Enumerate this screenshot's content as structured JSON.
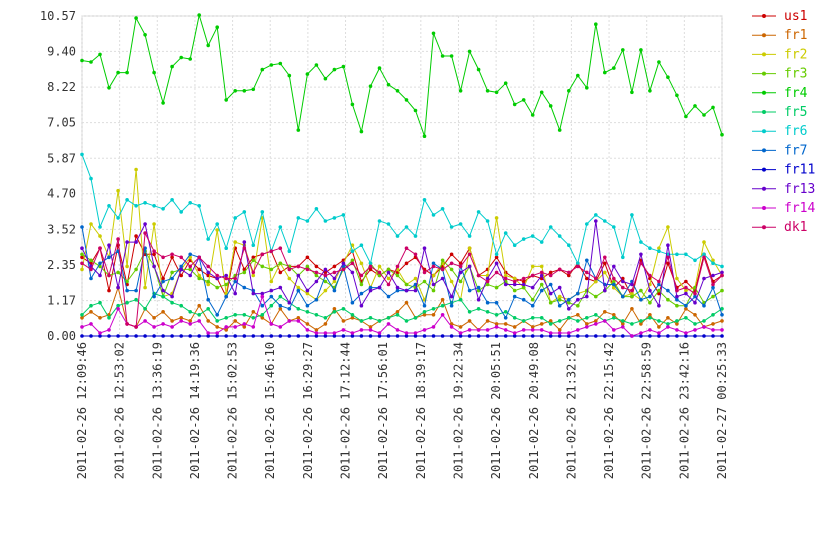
{
  "chart_data": {
    "type": "line",
    "y_ticks": [
      "0.00",
      "1.17",
      "2.35",
      "3.52",
      "4.70",
      "5.87",
      "7.05",
      "8.22",
      "9.40",
      "10.57"
    ],
    "ylim": [
      0,
      10.57
    ],
    "x_tick_labels": [
      "2011-02-26 12:09:46",
      "2011-02-26 12:53:02",
      "2011-02-26 13:36:19",
      "2011-02-26 14:19:36",
      "2011-02-26 15:02:53",
      "2011-02-26 15:46:10",
      "2011-02-26 16:29:27",
      "2011-02-26 17:12:44",
      "2011-02-26 17:56:01",
      "2011-02-26 18:39:17",
      "2011-02-26 19:22:34",
      "2011-02-26 20:05:51",
      "2011-02-26 20:49:08",
      "2011-02-26 21:32:25",
      "2011-02-26 22:15:42",
      "2011-02-26 22:58:59",
      "2011-02-26 23:42:16",
      "2011-02-27 00:25:33"
    ],
    "grid": true,
    "legend_position": "right",
    "series": [
      {
        "name": "us1",
        "color": "#cc0000",
        "values": [
          2.6,
          2.4,
          2.9,
          1.5,
          3.0,
          1.7,
          3.3,
          2.7,
          2.7,
          1.9,
          2.6,
          2.0,
          2.5,
          2.2,
          2.0,
          1.9,
          1.3,
          2.9,
          2.2,
          2.6,
          2.7,
          2.8,
          2.1,
          2.3,
          2.3,
          2.6,
          2.3,
          2.1,
          2.3,
          2.5,
          2.8,
          1.8,
          2.2,
          2.0,
          2.2,
          2.1,
          2.4,
          2.6,
          2.2,
          2.0,
          2.3,
          2.7,
          2.4,
          2.9,
          2.0,
          2.2,
          2.6,
          2.1,
          1.9,
          1.8,
          2.0,
          1.9,
          2.1,
          2.2,
          2.0,
          2.4,
          1.9,
          1.8,
          2.4,
          1.6,
          1.9,
          1.3,
          2.5,
          1.9,
          1.4,
          2.4,
          1.6,
          1.8,
          1.5,
          2.7,
          1.8,
          2.0
        ]
      },
      {
        "name": "fr1",
        "color": "#cc6600",
        "values": [
          0.6,
          0.8,
          0.6,
          0.7,
          1.6,
          0.4,
          0.3,
          0.9,
          0.6,
          0.8,
          0.5,
          0.6,
          0.5,
          1.0,
          0.5,
          0.3,
          0.2,
          0.5,
          0.3,
          0.8,
          0.6,
          0.4,
          0.9,
          0.5,
          0.6,
          0.4,
          0.2,
          0.4,
          0.9,
          0.5,
          0.6,
          0.5,
          0.3,
          0.5,
          0.6,
          0.8,
          1.1,
          0.6,
          0.7,
          0.7,
          1.2,
          0.4,
          0.3,
          0.5,
          0.2,
          0.5,
          0.4,
          0.4,
          0.3,
          0.5,
          0.3,
          0.4,
          0.5,
          0.2,
          0.6,
          0.7,
          0.4,
          0.5,
          0.8,
          0.7,
          0.4,
          0.9,
          0.4,
          0.7,
          0.3,
          0.6,
          0.4,
          0.9,
          0.7,
          0.3,
          0.4,
          0.5
        ]
      },
      {
        "name": "fr2",
        "color": "#cccc00",
        "values": [
          2.2,
          3.7,
          3.3,
          2.6,
          4.8,
          2.3,
          5.5,
          1.6,
          3.7,
          1.3,
          1.4,
          2.2,
          2.6,
          2.0,
          1.7,
          3.5,
          1.4,
          3.1,
          3.0,
          2.0,
          3.9,
          1.8,
          2.4,
          1.9,
          1.6,
          1.4,
          1.2,
          1.5,
          1.8,
          2.4,
          3.0,
          2.4,
          1.6,
          2.3,
          1.9,
          2.2,
          1.7,
          1.9,
          1.2,
          2.0,
          2.4,
          1.8,
          1.2,
          2.9,
          2.0,
          2.0,
          3.9,
          2.0,
          1.9,
          1.6,
          2.3,
          2.3,
          1.1,
          1.3,
          1.2,
          1.4,
          1.5,
          1.8,
          2.1,
          1.6,
          1.3,
          1.4,
          1.2,
          1.7,
          2.9,
          3.6,
          1.9,
          1.5,
          1.6,
          3.1,
          2.5,
          2.0
        ]
      },
      {
        "name": "fr3",
        "color": "#66cc00",
        "values": [
          2.7,
          2.5,
          2.3,
          2.0,
          2.1,
          1.8,
          2.2,
          2.8,
          2.3,
          1.3,
          2.1,
          2.2,
          2.2,
          1.9,
          1.8,
          1.6,
          1.7,
          2.0,
          2.1,
          2.5,
          2.3,
          2.2,
          2.4,
          2.3,
          2.0,
          2.3,
          2.0,
          1.8,
          1.6,
          2.2,
          2.5,
          1.7,
          2.4,
          2.0,
          2.2,
          2.0,
          1.7,
          1.6,
          1.8,
          1.5,
          2.5,
          2.2,
          1.8,
          2.3,
          1.5,
          1.7,
          1.6,
          1.8,
          1.5,
          1.6,
          1.2,
          1.7,
          1.1,
          1.2,
          1.1,
          1.0,
          1.5,
          1.3,
          1.5,
          1.8,
          1.3,
          1.3,
          1.5,
          1.1,
          1.5,
          1.2,
          1.0,
          1.0,
          1.6,
          1.1,
          1.3,
          1.5
        ]
      },
      {
        "name": "fr4",
        "color": "#00cc00",
        "values": [
          9.1,
          9.05,
          9.3,
          8.2,
          8.7,
          8.7,
          10.5,
          9.95,
          8.7,
          7.7,
          8.9,
          9.2,
          9.15,
          10.6,
          9.6,
          10.2,
          7.8,
          8.1,
          8.1,
          8.15,
          8.8,
          8.95,
          9.0,
          8.6,
          6.8,
          8.65,
          8.95,
          8.5,
          8.8,
          8.9,
          7.65,
          6.75,
          8.25,
          8.85,
          8.3,
          8.1,
          7.8,
          7.45,
          6.6,
          10.0,
          9.25,
          9.25,
          8.1,
          9.4,
          8.8,
          8.1,
          8.05,
          8.35,
          7.65,
          7.8,
          7.3,
          8.05,
          7.6,
          6.8,
          8.1,
          8.6,
          8.2,
          10.3,
          8.7,
          8.85,
          9.45,
          8.05,
          9.45,
          8.1,
          9.05,
          8.55,
          7.95,
          7.25,
          7.6,
          7.3,
          7.55,
          6.65
        ]
      },
      {
        "name": "fr5",
        "color": "#00cc66",
        "values": [
          0.7,
          1.0,
          1.1,
          0.6,
          1.0,
          1.1,
          1.2,
          0.9,
          1.4,
          1.3,
          1.1,
          1.0,
          0.8,
          0.7,
          0.9,
          0.5,
          0.6,
          0.7,
          0.7,
          0.6,
          0.7,
          1.0,
          1.3,
          1.1,
          0.9,
          0.8,
          0.7,
          0.6,
          0.8,
          0.9,
          0.7,
          0.5,
          0.6,
          0.5,
          0.6,
          0.7,
          0.5,
          0.6,
          0.8,
          0.9,
          1.0,
          1.1,
          1.2,
          0.8,
          0.9,
          0.8,
          0.7,
          0.8,
          0.6,
          0.5,
          0.6,
          0.6,
          0.4,
          0.5,
          0.6,
          0.5,
          0.6,
          0.7,
          0.5,
          0.6,
          0.5,
          0.4,
          0.5,
          0.6,
          0.5,
          0.4,
          0.5,
          0.6,
          0.4,
          0.5,
          0.7,
          0.9
        ]
      },
      {
        "name": "fr6",
        "color": "#00cccc",
        "values": [
          6.0,
          5.2,
          3.6,
          4.3,
          3.9,
          4.5,
          4.3,
          4.4,
          4.3,
          4.2,
          4.5,
          4.1,
          4.4,
          4.3,
          3.2,
          3.7,
          2.9,
          3.9,
          4.1,
          3.0,
          4.1,
          2.8,
          3.6,
          2.8,
          3.9,
          3.8,
          4.2,
          3.8,
          3.9,
          4.0,
          2.8,
          3.0,
          2.4,
          3.8,
          3.7,
          3.3,
          3.6,
          3.3,
          4.5,
          4.0,
          4.2,
          3.6,
          3.7,
          3.3,
          4.1,
          3.8,
          2.7,
          3.4,
          3.0,
          3.2,
          3.3,
          3.1,
          3.6,
          3.3,
          3.0,
          2.4,
          3.7,
          4.0,
          3.8,
          3.6,
          2.6,
          4.0,
          3.1,
          2.9,
          2.8,
          2.7,
          2.7,
          2.7,
          2.5,
          2.7,
          2.4,
          2.3
        ]
      },
      {
        "name": "fr7",
        "color": "#0066cc",
        "values": [
          3.6,
          1.9,
          2.4,
          2.6,
          2.8,
          1.5,
          1.5,
          2.9,
          1.3,
          1.8,
          1.9,
          2.3,
          2.7,
          2.6,
          1.2,
          0.7,
          1.3,
          1.8,
          1.6,
          1.5,
          1.0,
          1.3,
          1.0,
          0.9,
          1.5,
          1.0,
          1.2,
          2.0,
          1.5,
          2.3,
          1.1,
          1.4,
          1.6,
          1.6,
          1.3,
          1.5,
          1.5,
          1.7,
          1.0,
          2.4,
          2.2,
          1.0,
          2.3,
          1.5,
          1.6,
          1.1,
          1.1,
          0.6,
          1.3,
          1.2,
          1.0,
          1.5,
          1.7,
          1.0,
          1.2,
          1.4,
          2.5,
          1.9,
          1.7,
          1.7,
          1.3,
          1.8,
          1.2,
          1.3,
          1.7,
          1.5,
          1.2,
          1.0,
          1.3,
          1.0,
          1.6,
          0.7
        ]
      },
      {
        "name": "fr11",
        "color": "#0000cc",
        "values": [
          0.0,
          0.0,
          0.0,
          0.0,
          0.0,
          0.0,
          0.0,
          0.0,
          0.0,
          0.0,
          0.0,
          0.0,
          0.0,
          0.0,
          0.0,
          0.0,
          0.0,
          0.0,
          0.0,
          0.0,
          0.0,
          0.0,
          0.0,
          0.0,
          0.0,
          0.0,
          0.0,
          0.0,
          0.0,
          0.0,
          0.0,
          0.0,
          0.0,
          0.0,
          0.0,
          0.0,
          0.0,
          0.0,
          0.0,
          0.0,
          0.0,
          0.0,
          0.0,
          0.0,
          0.0,
          0.0,
          0.0,
          0.0,
          0.0,
          0.0,
          0.0,
          0.0,
          0.0,
          0.0,
          0.0,
          0.0,
          0.0,
          0.0,
          0.0,
          0.0,
          0.0,
          0.0,
          0.0,
          0.0,
          0.0,
          0.0,
          0.0,
          0.0,
          0.0,
          0.0,
          0.0,
          0.0
        ]
      },
      {
        "name": "fr13",
        "color": "#6600cc",
        "values": [
          2.9,
          2.3,
          2.0,
          3.0,
          1.6,
          3.1,
          3.1,
          3.7,
          2.3,
          1.5,
          1.3,
          2.2,
          2.0,
          2.6,
          2.1,
          1.9,
          2.0,
          1.4,
          3.1,
          1.4,
          1.4,
          1.5,
          1.6,
          1.1,
          2.0,
          1.5,
          1.8,
          2.2,
          1.9,
          2.4,
          2.1,
          1.0,
          1.5,
          1.6,
          2.1,
          1.6,
          1.5,
          1.5,
          2.9,
          1.7,
          1.9,
          1.3,
          2.1,
          2.3,
          1.2,
          1.9,
          2.4,
          1.7,
          1.7,
          1.7,
          1.6,
          2.0,
          1.4,
          1.6,
          0.9,
          1.2,
          1.3,
          3.8,
          1.5,
          2.3,
          1.8,
          1.7,
          2.7,
          1.5,
          1.0,
          3.0,
          1.3,
          1.4,
          1.1,
          1.9,
          2.0,
          2.1
        ]
      },
      {
        "name": "fr14",
        "color": "#cc00cc",
        "values": [
          0.3,
          0.4,
          0.1,
          0.2,
          0.9,
          0.4,
          0.3,
          0.5,
          0.3,
          0.4,
          0.3,
          0.5,
          0.4,
          0.5,
          0.1,
          0.1,
          0.3,
          0.3,
          0.4,
          0.3,
          1.3,
          0.4,
          0.3,
          0.5,
          0.5,
          0.2,
          0.1,
          0.1,
          0.1,
          0.2,
          0.1,
          0.2,
          0.2,
          0.1,
          0.4,
          0.2,
          0.1,
          0.1,
          0.2,
          0.3,
          0.7,
          0.3,
          0.1,
          0.2,
          0.2,
          0.2,
          0.3,
          0.2,
          0.1,
          0.2,
          0.2,
          0.2,
          0.1,
          0.1,
          0.1,
          0.2,
          0.3,
          0.4,
          0.5,
          0.2,
          0.3,
          0.0,
          0.1,
          0.2,
          0.1,
          0.3,
          0.2,
          0.1,
          0.2,
          0.3,
          0.2,
          0.2
        ]
      },
      {
        "name": "dk1",
        "color": "#cc0066",
        "values": [
          2.4,
          2.2,
          2.9,
          2.0,
          3.2,
          0.4,
          0.3,
          3.4,
          2.8,
          2.6,
          2.7,
          2.6,
          2.3,
          2.6,
          2.3,
          2.0,
          1.9,
          1.9,
          2.9,
          2.1,
          2.7,
          2.8,
          2.9,
          2.2,
          2.3,
          2.2,
          2.1,
          2.0,
          2.1,
          2.2,
          2.4,
          2.0,
          2.3,
          2.1,
          1.7,
          2.3,
          2.9,
          2.7,
          2.1,
          2.3,
          2.2,
          2.4,
          2.3,
          2.7,
          2.0,
          1.8,
          2.1,
          1.9,
          1.8,
          1.9,
          2.0,
          2.1,
          2.0,
          2.2,
          2.1,
          2.3,
          2.1,
          1.9,
          2.6,
          1.9,
          1.6,
          1.5,
          2.4,
          2.0,
          1.8,
          2.6,
          1.5,
          1.6,
          1.4,
          2.6,
          1.7,
          2.0
        ]
      }
    ]
  }
}
